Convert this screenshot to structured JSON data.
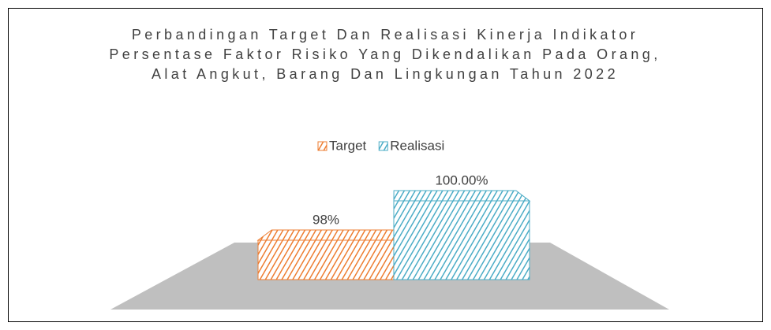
{
  "chart_data": {
    "type": "bar3d",
    "title": "Perbandingan Target Dan Realisasi Kinerja Indikator Persentase Faktor Risiko Yang Dikendalikan Pada Orang, Alat Angkut, Barang Dan Lingkungan Tahun 2022",
    "series": [
      {
        "name": "Target",
        "color": "#ed7d31",
        "values": [
          98
        ],
        "value_labels": [
          "98%"
        ]
      },
      {
        "name": "Realisasi",
        "color": "#4bacc6",
        "values": [
          100
        ],
        "value_labels": [
          "100.00%"
        ]
      }
    ],
    "ylim": [
      96,
      100
    ]
  }
}
